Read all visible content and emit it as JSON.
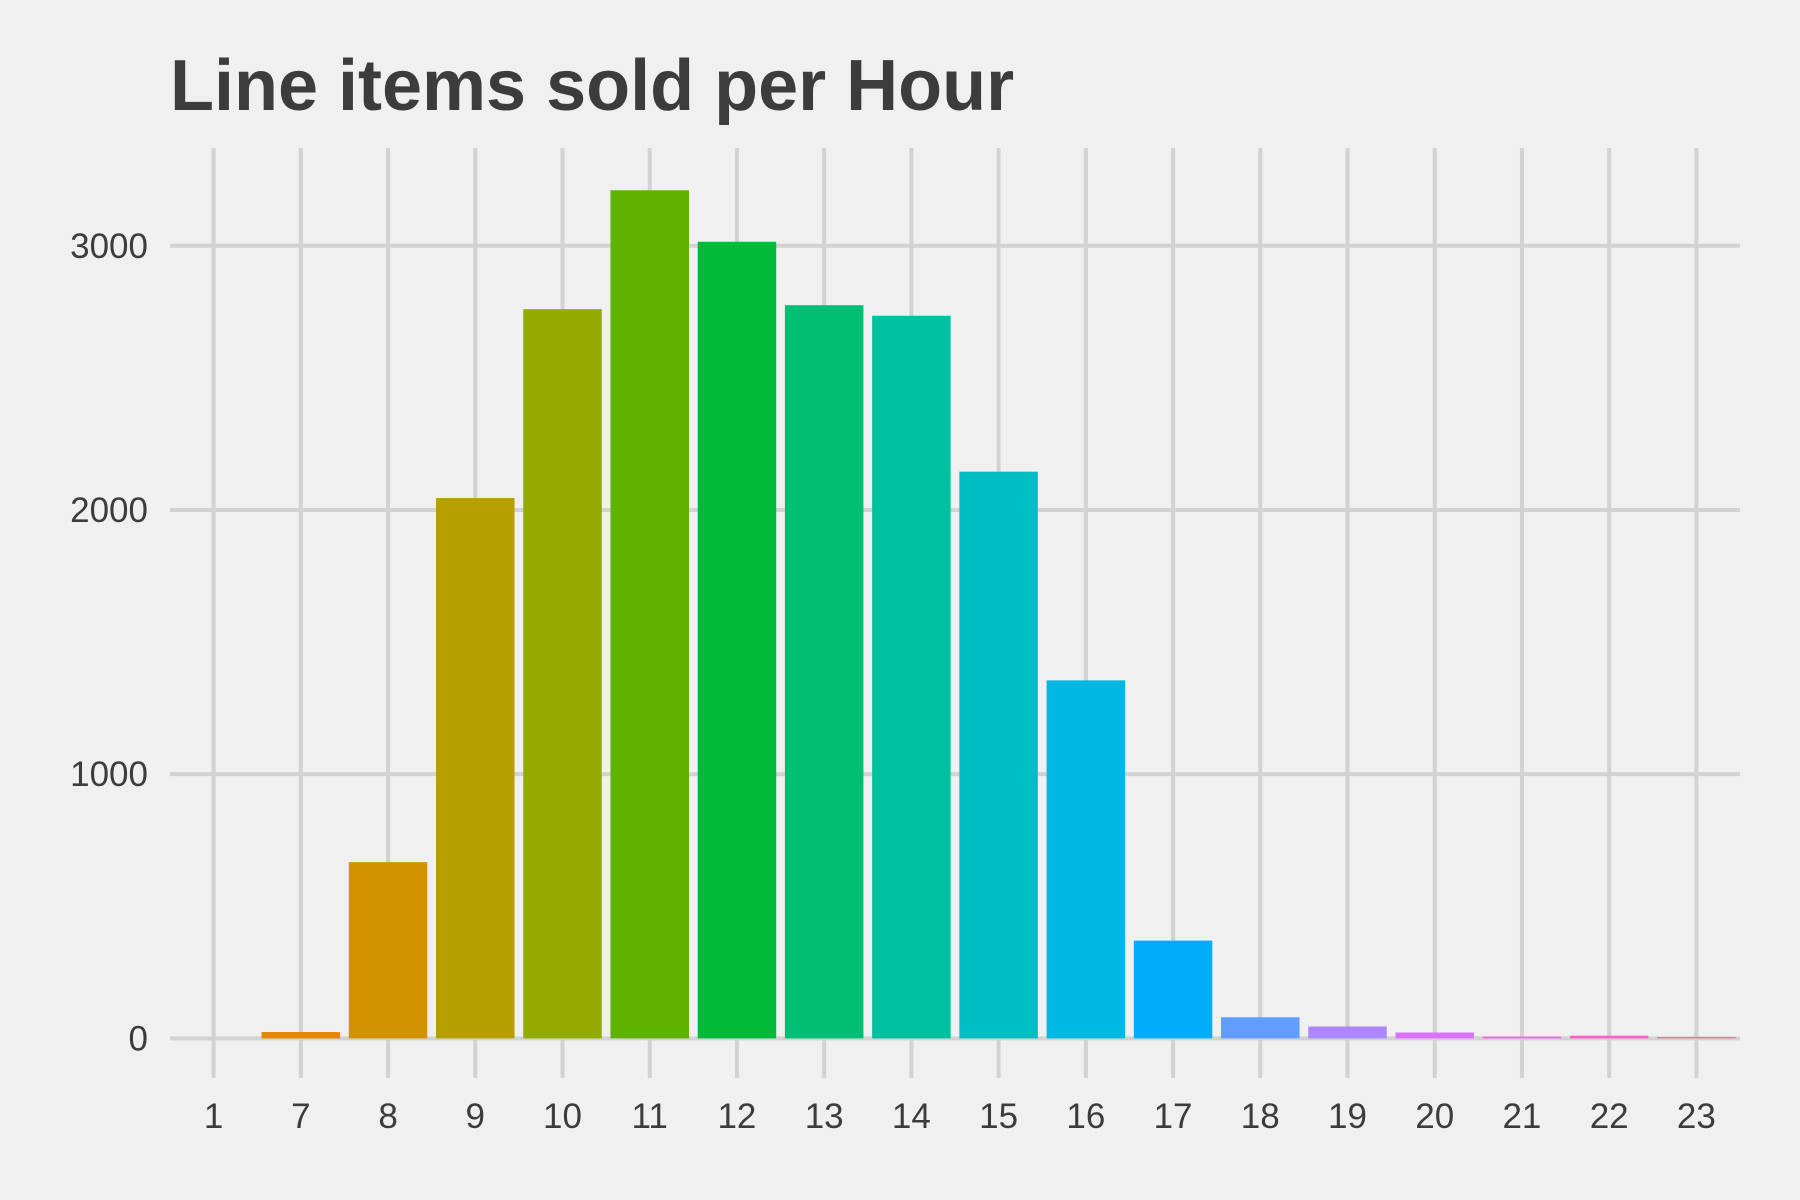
{
  "chart_data": {
    "type": "bar",
    "title": "Line items sold per Hour",
    "xlabel": "",
    "ylabel": "",
    "categories": [
      "1",
      "7",
      "8",
      "9",
      "10",
      "11",
      "12",
      "13",
      "14",
      "15",
      "16",
      "17",
      "18",
      "19",
      "20",
      "21",
      "22",
      "23"
    ],
    "values": [
      0,
      24,
      667,
      2045,
      2760,
      3210,
      3015,
      2775,
      2735,
      2145,
      1355,
      370,
      80,
      45,
      22,
      7,
      10,
      5
    ],
    "colors": [
      "#f8766d",
      "#e58700",
      "#d39200",
      "#b79f00",
      "#93aa00",
      "#5eb300",
      "#00ba38",
      "#00bf74",
      "#00c19f",
      "#00bfc4",
      "#00b9e3",
      "#00adfa",
      "#619cff",
      "#ae87ff",
      "#db72fb",
      "#f564e3",
      "#ff61c3",
      "#ff6c91"
    ],
    "y_ticks": [
      0,
      1000,
      2000,
      3000
    ],
    "ylim": [
      -150,
      3370
    ],
    "grid": true,
    "legend": "none"
  }
}
